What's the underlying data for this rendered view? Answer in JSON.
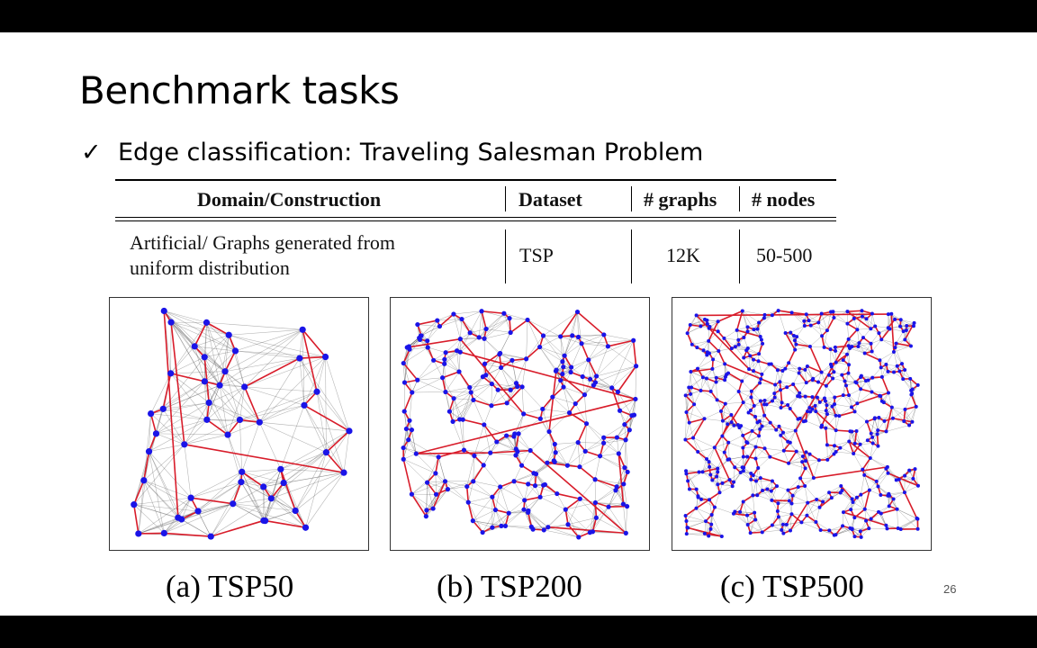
{
  "slide": {
    "title": "Benchmark tasks",
    "bullet": {
      "check": "✓",
      "text": "Edge classification: Traveling Salesman Problem"
    },
    "table": {
      "headers": [
        "Domain/Construction",
        "Dataset",
        "# graphs",
        "# nodes"
      ],
      "row": {
        "domain_line1": "Artificial/ Graphs generated from",
        "domain_line2": "uniform distribution",
        "dataset": "TSP",
        "graphs": "12K",
        "nodes": "50-500"
      }
    },
    "figures": [
      {
        "caption": "(a) TSP50",
        "nodes": 50
      },
      {
        "caption": "(b) TSP200",
        "nodes": 200
      },
      {
        "caption": "(c) TSP500",
        "nodes": 500
      }
    ],
    "colors": {
      "node": "#1a14e8",
      "tour_edge": "#d81c2a",
      "knn_edge": "#555555"
    },
    "page_number": "26"
  }
}
